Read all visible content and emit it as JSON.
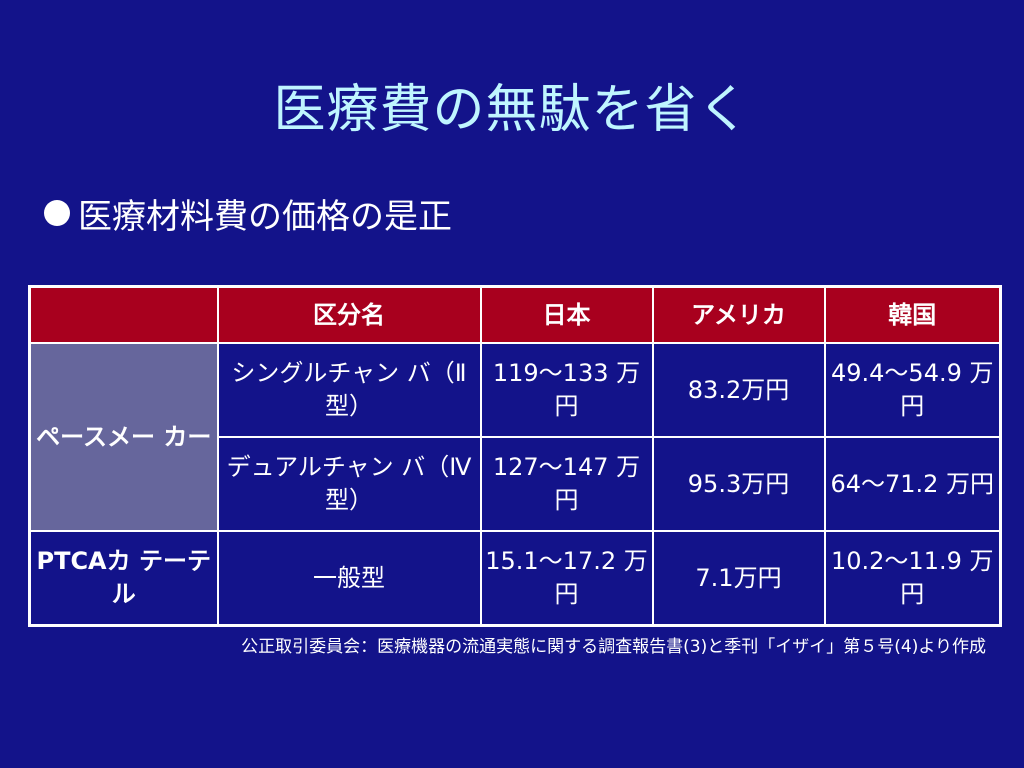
{
  "slide": {
    "title": "医療費の無駄を省く",
    "bullet": "医療材料費の価格の是正"
  },
  "table": {
    "headers": [
      "",
      "区分名",
      "日本",
      "アメリカ",
      "韓国"
    ],
    "categories": {
      "pacemaker": "ペースメー カー",
      "ptca": "PTCAカ テーテル"
    },
    "rows": [
      {
        "name": "シングルチャン バ（Ⅱ型）",
        "japan": "119～133 万円",
        "usa": "83.2万円",
        "korea": "49.4～54.9 万円"
      },
      {
        "name": "デュアルチャン バ（Ⅳ型）",
        "japan": "127～147 万円",
        "usa": "95.3万円",
        "korea": "64～71.2 万円"
      },
      {
        "name": "一般型",
        "japan": "15.1～17.2 万円",
        "usa": "7.1万円",
        "korea": "10.2～11.9 万円"
      }
    ]
  },
  "source_note": "公正取引委員会：医療機器の流通実態に関する調査報告書(3)と季刊「イザイ」第５号(4)より作成",
  "colors": {
    "background": "#13138a",
    "title": "#bff5ff",
    "header_bg": "#a8001e",
    "category_bg": "#66669c"
  }
}
